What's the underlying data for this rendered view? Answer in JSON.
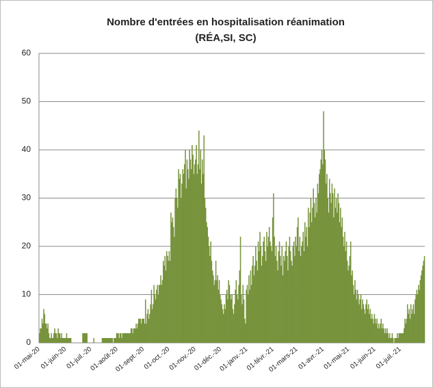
{
  "chart_data": {
    "type": "bar",
    "title": "Nombre d'entrées en hospitalisation réanimation",
    "subtitle": "(RÉA,SI, SC)",
    "color": "#77933c",
    "ylim": [
      0,
      60
    ],
    "yticks": [
      0,
      10,
      20,
      30,
      40,
      50,
      60
    ],
    "grid": true,
    "categories": [
      "01-mai-20",
      null,
      null,
      null,
      null,
      null,
      null,
      null,
      null,
      null,
      null,
      null,
      null,
      null,
      null,
      null,
      null,
      null,
      null,
      null,
      null,
      null,
      null,
      null,
      null,
      null,
      null,
      null,
      null,
      null,
      null,
      "01-juin-20",
      null,
      null,
      null,
      null,
      null,
      null,
      null,
      null,
      null,
      null,
      null,
      null,
      null,
      null,
      null,
      null,
      null,
      null,
      null,
      null,
      null,
      null,
      null,
      null,
      null,
      null,
      null,
      null,
      null,
      "01-juil.-20",
      null,
      null,
      null,
      null,
      null,
      null,
      null,
      null,
      null,
      null,
      null,
      null,
      null,
      null,
      null,
      null,
      null,
      null,
      null,
      null,
      null,
      null,
      null,
      null,
      null,
      null,
      null,
      null,
      null,
      null,
      "01-août-20",
      null,
      null,
      null,
      null,
      null,
      null,
      null,
      null,
      null,
      null,
      null,
      null,
      null,
      null,
      null,
      null,
      null,
      null,
      null,
      null,
      null,
      null,
      null,
      null,
      null,
      null,
      null,
      null,
      null,
      null,
      "01-sept.-20",
      null,
      null,
      null,
      null,
      null,
      null,
      null,
      null,
      null,
      null,
      null,
      null,
      null,
      null,
      null,
      null,
      null,
      null,
      null,
      null,
      null,
      null,
      null,
      null,
      null,
      null,
      null,
      null,
      null,
      "01-oct.-20",
      null,
      null,
      null,
      null,
      null,
      null,
      null,
      null,
      null,
      null,
      null,
      null,
      null,
      null,
      null,
      null,
      null,
      null,
      null,
      null,
      null,
      null,
      null,
      null,
      null,
      null,
      null,
      null,
      null,
      null,
      "01-nov.-20",
      null,
      null,
      null,
      null,
      null,
      null,
      null,
      null,
      null,
      null,
      null,
      null,
      null,
      null,
      null,
      null,
      null,
      null,
      null,
      null,
      null,
      null,
      null,
      null,
      null,
      null,
      null,
      null,
      null,
      "01-déc.-20",
      null,
      null,
      null,
      null,
      null,
      null,
      null,
      null,
      null,
      null,
      null,
      null,
      null,
      null,
      null,
      null,
      null,
      null,
      null,
      null,
      null,
      null,
      null,
      null,
      null,
      null,
      null,
      null,
      null,
      null,
      "01-janv.-21",
      null,
      null,
      null,
      null,
      null,
      null,
      null,
      null,
      null,
      null,
      null,
      null,
      null,
      null,
      null,
      null,
      null,
      null,
      null,
      null,
      null,
      null,
      null,
      null,
      null,
      null,
      null,
      null,
      null,
      null,
      "01-févr.-21",
      null,
      null,
      null,
      null,
      null,
      null,
      null,
      null,
      null,
      null,
      null,
      null,
      null,
      null,
      null,
      null,
      null,
      null,
      null,
      null,
      null,
      null,
      null,
      null,
      null,
      null,
      null,
      "01-mars-21",
      null,
      null,
      null,
      null,
      null,
      null,
      null,
      null,
      null,
      null,
      null,
      null,
      null,
      null,
      null,
      null,
      null,
      null,
      null,
      null,
      null,
      null,
      null,
      null,
      null,
      null,
      null,
      null,
      null,
      null,
      "01-avr.-21",
      null,
      null,
      null,
      null,
      null,
      null,
      null,
      null,
      null,
      null,
      null,
      null,
      null,
      null,
      null,
      null,
      null,
      null,
      null,
      null,
      null,
      null,
      null,
      null,
      null,
      null,
      null,
      null,
      null,
      "01-mai-21",
      null,
      null,
      null,
      null,
      null,
      null,
      null,
      null,
      null,
      null,
      null,
      null,
      null,
      null,
      null,
      null,
      null,
      null,
      null,
      null,
      null,
      null,
      null,
      null,
      null,
      null,
      null,
      null,
      null,
      null,
      "01-juin-21",
      null,
      null,
      null,
      null,
      null,
      null,
      null,
      null,
      null,
      null,
      null,
      null,
      null,
      null,
      null,
      null,
      null,
      null,
      null,
      null,
      null,
      null,
      null,
      null,
      null,
      null,
      null,
      null,
      null,
      "01-juil.-21",
      null,
      null,
      null,
      null,
      null,
      null,
      null,
      null,
      null,
      null,
      null,
      null,
      null,
      null,
      null,
      null,
      null,
      null,
      null,
      null,
      null,
      null,
      null,
      null,
      null,
      null,
      null,
      null
    ],
    "values": [
      2,
      3,
      3,
      5,
      4,
      7,
      6,
      4,
      4,
      3,
      4,
      2,
      1,
      1,
      2,
      1,
      1,
      2,
      3,
      2,
      2,
      1,
      3,
      2,
      2,
      1,
      2,
      1,
      1,
      1,
      1,
      1,
      2,
      1,
      1,
      1,
      1,
      1,
      0,
      0,
      0,
      0,
      0,
      0,
      0,
      0,
      0,
      0,
      0,
      0,
      0,
      2,
      2,
      2,
      2,
      2,
      2,
      0,
      0,
      0,
      0,
      0,
      0,
      0,
      1,
      0,
      0,
      0,
      0,
      0,
      0,
      0,
      0,
      0,
      1,
      1,
      1,
      1,
      1,
      1,
      1,
      1,
      1,
      1,
      1,
      1,
      1,
      0,
      1,
      1,
      1,
      2,
      2,
      2,
      1,
      2,
      2,
      1,
      2,
      2,
      2,
      2,
      2,
      2,
      2,
      2,
      2,
      2,
      3,
      3,
      2,
      3,
      3,
      3,
      4,
      3,
      4,
      5,
      5,
      5,
      4,
      5,
      5,
      5,
      4,
      9,
      4,
      6,
      7,
      5,
      6,
      8,
      11,
      7,
      8,
      12,
      10,
      9,
      11,
      12,
      10,
      12,
      12,
      14,
      12,
      13,
      17,
      16,
      18,
      15,
      19,
      18,
      17,
      19,
      17,
      27,
      25,
      26,
      24,
      22,
      30,
      32,
      30,
      28,
      36,
      34,
      35,
      30,
      33,
      36,
      35,
      37,
      40,
      32,
      38,
      36,
      34,
      40,
      38,
      36,
      41,
      39,
      35,
      37,
      38,
      41,
      35,
      37,
      44,
      36,
      40,
      33,
      38,
      35,
      43,
      30,
      28,
      25,
      24,
      22,
      20,
      18,
      21,
      17,
      15,
      14,
      12,
      13,
      17,
      13,
      14,
      11,
      13,
      10,
      9,
      8,
      7,
      6,
      8,
      7,
      10,
      11,
      9,
      13,
      12,
      10,
      9,
      10,
      7,
      6,
      8,
      11,
      13,
      10,
      9,
      12,
      15,
      22,
      10,
      8,
      12,
      9,
      5,
      4,
      11,
      12,
      10,
      14,
      11,
      15,
      12,
      16,
      18,
      14,
      16,
      20,
      17,
      15,
      21,
      19,
      23,
      20,
      16,
      18,
      21,
      22,
      19,
      17,
      23,
      20,
      22,
      24,
      21,
      20,
      19,
      26,
      31,
      22,
      18,
      20,
      17,
      15,
      19,
      21,
      18,
      16,
      20,
      14,
      18,
      17,
      19,
      21,
      18,
      15,
      20,
      22,
      19,
      17,
      16,
      20,
      21,
      18,
      22,
      20,
      24,
      26,
      19,
      22,
      18,
      20,
      21,
      23,
      19,
      25,
      22,
      24,
      20,
      28,
      24,
      27,
      30,
      25,
      28,
      32,
      29,
      26,
      30,
      27,
      33,
      31,
      35,
      36,
      38,
      40,
      37,
      48,
      40,
      38,
      33,
      35,
      30,
      27,
      34,
      31,
      29,
      33,
      31,
      26,
      32,
      28,
      30,
      27,
      31,
      29,
      25,
      28,
      24,
      26,
      22,
      20,
      23,
      19,
      21,
      17,
      15,
      16,
      18,
      21,
      14,
      15,
      12,
      10,
      13,
      11,
      9,
      11,
      10,
      8,
      9,
      10,
      7,
      9,
      8,
      7,
      6,
      8,
      9,
      7,
      8,
      6,
      7,
      5,
      6,
      5,
      4,
      6,
      5,
      4,
      5,
      3,
      4,
      3,
      4,
      5,
      3,
      4,
      3,
      2,
      3,
      2,
      3,
      2,
      1,
      2,
      1,
      1,
      2,
      1,
      0,
      1,
      1,
      1,
      2,
      1,
      2,
      2,
      2,
      2,
      2,
      2,
      3,
      5,
      4,
      5,
      8,
      6,
      7,
      5,
      8,
      6,
      7,
      8,
      6,
      9,
      10,
      11,
      10,
      12,
      11,
      13,
      14,
      15,
      16,
      17,
      18
    ]
  }
}
